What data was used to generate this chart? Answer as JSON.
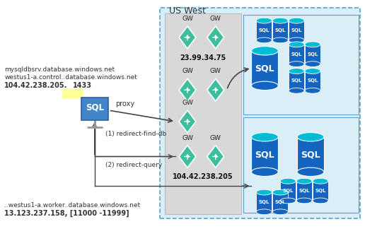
{
  "title": "US West",
  "bg_color": "#ffffff",
  "left_text1": "mysqldbsrv.database.windows.net",
  "left_text2": "westus1-a.control..database.windows.net",
  "left_text3_normal": "104.42.238.205.",
  "left_text3_bold": "1433",
  "left_text3_highlight": "#ffff99",
  "bottom_text1": "..westus1-a.worker..database.windows.net",
  "bottom_text2": "13.123.237.158, [11000 -11999]",
  "gw_label1": "23.99.34.75",
  "gw_label2": "104.42.238.205",
  "proxy_label": "proxy",
  "redirect1_label": "(1) redirect-find-db",
  "redirect2_label": "(2) redirect-query",
  "gw_color": "#3dbf9e",
  "gw_color2": "#5ecfb0",
  "sql_blue": "#1565c0",
  "sql_cyan": "#00bcd4",
  "sql_client_color": "#4285c8",
  "arrow_color": "#444444",
  "text_color": "#333333",
  "box_gray": "#d8d8d8",
  "box_blue_light": "#daeef8",
  "box_border_blue": "#5ba3c9",
  "uswest_border": "#5ba3c9"
}
